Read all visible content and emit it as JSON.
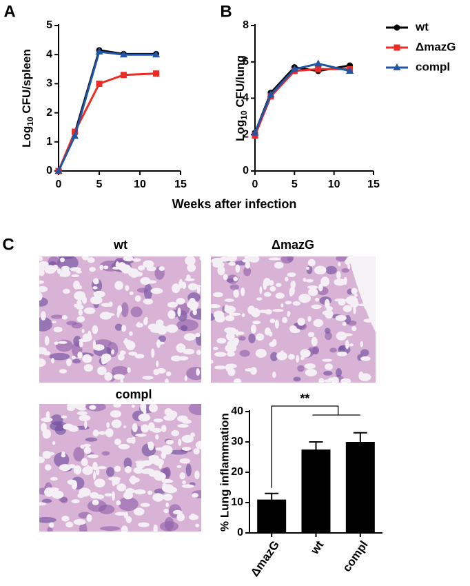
{
  "chart_data": [
    {
      "type": "line",
      "panel": "A",
      "y_label_parts": [
        "Log",
        "10",
        " CFU/spleen"
      ],
      "x": [
        0,
        2,
        5,
        8,
        12
      ],
      "xlim": [
        0,
        15
      ],
      "xticks": [
        0,
        5,
        10,
        15
      ],
      "ylim": [
        0,
        5
      ],
      "yticks": [
        0,
        1,
        2,
        3,
        4,
        5
      ],
      "legend": false,
      "series": [
        {
          "name": "wt",
          "color": "#000000",
          "marker": "circle",
          "values": [
            0,
            1.3,
            4.15,
            4.02,
            4.02
          ]
        },
        {
          "name": "ΔmazG",
          "color": "#ee2a24",
          "marker": "square",
          "values": [
            0,
            1.35,
            3.0,
            3.3,
            3.35
          ]
        },
        {
          "name": "compl",
          "color": "#2255a4",
          "marker": "triangle",
          "values": [
            0,
            1.2,
            4.1,
            4.0,
            4.0
          ]
        }
      ]
    },
    {
      "type": "line",
      "panel": "B",
      "y_label_parts": [
        "Log",
        "10",
        " CFU/lung"
      ],
      "x": [
        0,
        2,
        5,
        8,
        12
      ],
      "xlim": [
        0,
        15
      ],
      "xticks": [
        0,
        5,
        10,
        15
      ],
      "ylim": [
        0,
        8
      ],
      "yticks": [
        0,
        2,
        4,
        6,
        8
      ],
      "legend": true,
      "series": [
        {
          "name": "wt",
          "color": "#000000",
          "marker": "circle",
          "values": [
            2.1,
            4.3,
            5.7,
            5.5,
            5.8
          ]
        },
        {
          "name": "ΔmazG",
          "color": "#ee2a24",
          "marker": "square",
          "values": [
            1.95,
            4.1,
            5.5,
            5.6,
            5.6
          ]
        },
        {
          "name": "compl",
          "color": "#2255a4",
          "marker": "triangle",
          "values": [
            2.1,
            4.2,
            5.6,
            5.9,
            5.5
          ]
        }
      ]
    },
    {
      "type": "bar",
      "panel": "C",
      "y_label": "% Lung inflammation",
      "categories": [
        "ΔmazG",
        "wt",
        "compl"
      ],
      "values": [
        11,
        27.5,
        30
      ],
      "errors": [
        2,
        2.5,
        3
      ],
      "color": "#000000",
      "ylim": [
        0,
        40
      ],
      "yticks": [
        0,
        10,
        20,
        30,
        40
      ],
      "annotation": "**"
    }
  ],
  "x_label": "Weeks after infection",
  "images": [
    {
      "label": "wt"
    },
    {
      "label": "ΔmazG"
    },
    {
      "label": "compl"
    }
  ]
}
